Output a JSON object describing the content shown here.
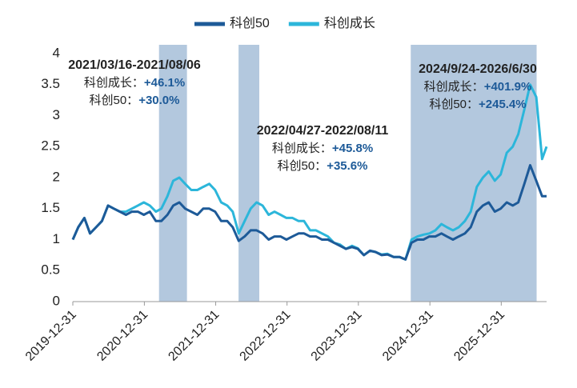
{
  "chart_data": {
    "type": "line",
    "x": [
      "2019-12-31",
      "2020-01-28",
      "2020-02-28",
      "2020-03-28",
      "2020-04-28",
      "2020-05-28",
      "2020-06-28",
      "2020-07-28",
      "2020-08-28",
      "2020-09-28",
      "2020-10-28",
      "2020-11-28",
      "2020-12-28",
      "2021-01-28",
      "2021-02-28",
      "2021-03-28",
      "2021-04-28",
      "2021-05-28",
      "2021-06-28",
      "2021-07-28",
      "2021-08-28",
      "2021-09-28",
      "2021-10-28",
      "2021-11-28",
      "2021-12-28",
      "2022-01-28",
      "2022-02-28",
      "2022-03-28",
      "2022-04-28",
      "2022-05-28",
      "2022-06-28",
      "2022-07-28",
      "2022-08-28",
      "2022-09-28",
      "2022-10-28",
      "2022-11-28",
      "2022-12-28",
      "2023-01-28",
      "2023-02-28",
      "2023-03-28",
      "2023-04-28",
      "2023-05-28",
      "2023-06-28",
      "2023-07-28",
      "2023-08-28",
      "2023-09-28",
      "2023-10-28",
      "2023-11-28",
      "2023-12-28",
      "2024-01-28",
      "2024-02-28",
      "2024-03-28",
      "2024-04-28",
      "2024-05-28",
      "2024-06-28",
      "2024-07-28",
      "2024-08-28",
      "2024-09-28",
      "2024-10-28",
      "2024-11-28",
      "2024-12-28",
      "2025-01-28",
      "2025-02-28",
      "2025-03-28",
      "2025-04-28",
      "2025-05-28",
      "2025-06-28",
      "2025-07-28",
      "2025-08-28",
      "2025-09-28",
      "2025-10-28",
      "2025-11-28",
      "2025-12-28",
      "2026-01-28",
      "2026-02-28",
      "2026-03-28",
      "2026-04-28",
      "2026-05-28",
      "2026-06-28",
      "2026-07-28",
      "2026-08-20"
    ],
    "series": [
      {
        "name": "科创50",
        "color": "#1d5a98",
        "values": [
          1.0,
          1.2,
          1.35,
          1.1,
          1.2,
          1.3,
          1.55,
          1.5,
          1.45,
          1.4,
          1.45,
          1.45,
          1.4,
          1.45,
          1.3,
          1.3,
          1.4,
          1.55,
          1.6,
          1.5,
          1.45,
          1.4,
          1.5,
          1.5,
          1.45,
          1.3,
          1.3,
          1.2,
          0.98,
          1.05,
          1.15,
          1.15,
          1.1,
          1.0,
          1.05,
          1.05,
          1.0,
          1.05,
          1.1,
          1.1,
          1.05,
          1.05,
          1.0,
          1.0,
          0.95,
          0.9,
          0.85,
          0.88,
          0.85,
          0.75,
          0.82,
          0.8,
          0.75,
          0.76,
          0.72,
          0.72,
          0.68,
          0.95,
          1.0,
          1.0,
          1.05,
          1.05,
          1.1,
          1.05,
          1.0,
          1.05,
          1.1,
          1.2,
          1.45,
          1.55,
          1.6,
          1.45,
          1.5,
          1.6,
          1.55,
          1.6,
          1.9,
          2.2,
          1.95,
          1.7,
          1.7
        ]
      },
      {
        "name": "科创成长",
        "color": "#2cb6da",
        "values": [
          1.0,
          1.2,
          1.35,
          1.1,
          1.2,
          1.3,
          1.55,
          1.5,
          1.45,
          1.45,
          1.5,
          1.55,
          1.6,
          1.55,
          1.45,
          1.5,
          1.7,
          1.95,
          2.0,
          1.9,
          1.8,
          1.8,
          1.85,
          1.9,
          1.8,
          1.6,
          1.55,
          1.45,
          1.1,
          1.3,
          1.5,
          1.6,
          1.55,
          1.4,
          1.45,
          1.4,
          1.35,
          1.35,
          1.3,
          1.3,
          1.15,
          1.15,
          1.1,
          1.05,
          0.95,
          0.92,
          0.85,
          0.9,
          0.86,
          0.75,
          0.82,
          0.8,
          0.76,
          0.77,
          0.72,
          0.72,
          0.68,
          1.0,
          1.05,
          1.08,
          1.1,
          1.15,
          1.25,
          1.2,
          1.15,
          1.2,
          1.3,
          1.45,
          1.85,
          2.0,
          2.1,
          1.95,
          2.05,
          2.4,
          2.5,
          2.7,
          3.1,
          3.5,
          3.3,
          2.3,
          2.5
        ]
      }
    ],
    "xlim": [
      "2019-12-31",
      "2026-08-20"
    ],
    "xticks": [
      "2019-12-31",
      "2020-12-31",
      "2021-12-31",
      "2022-12-31",
      "2023-12-31",
      "2024-12-31",
      "2025-12-31"
    ],
    "ylim": [
      0,
      4
    ],
    "yticks": [
      0,
      0.5,
      1,
      1.5,
      2,
      2.5,
      3,
      3.5,
      4
    ],
    "spans": [
      {
        "start": "2021-03-16",
        "end": "2021-08-06",
        "label": "2021/03/16-2021/08/06",
        "items": [
          {
            "name": "科创成长：",
            "value": "+46.1%"
          },
          {
            "name": "科创50：",
            "value": "+30.0%"
          }
        ]
      },
      {
        "start": "2022-04-27",
        "end": "2022-08-11",
        "label": "2022/04/27-2022/08/11",
        "items": [
          {
            "name": "科创成长：",
            "value": "+45.8%"
          },
          {
            "name": "科创50：",
            "value": "+35.6%"
          }
        ]
      },
      {
        "start": "2024-09-24",
        "end": "2026-06-30",
        "label": "2024/9/24-2026/6/30",
        "items": [
          {
            "name": "科创成长：",
            "value": "+401.9%"
          },
          {
            "name": "科创50：",
            "value": "+245.4%"
          }
        ]
      }
    ],
    "span_color": "#b3c8de"
  }
}
